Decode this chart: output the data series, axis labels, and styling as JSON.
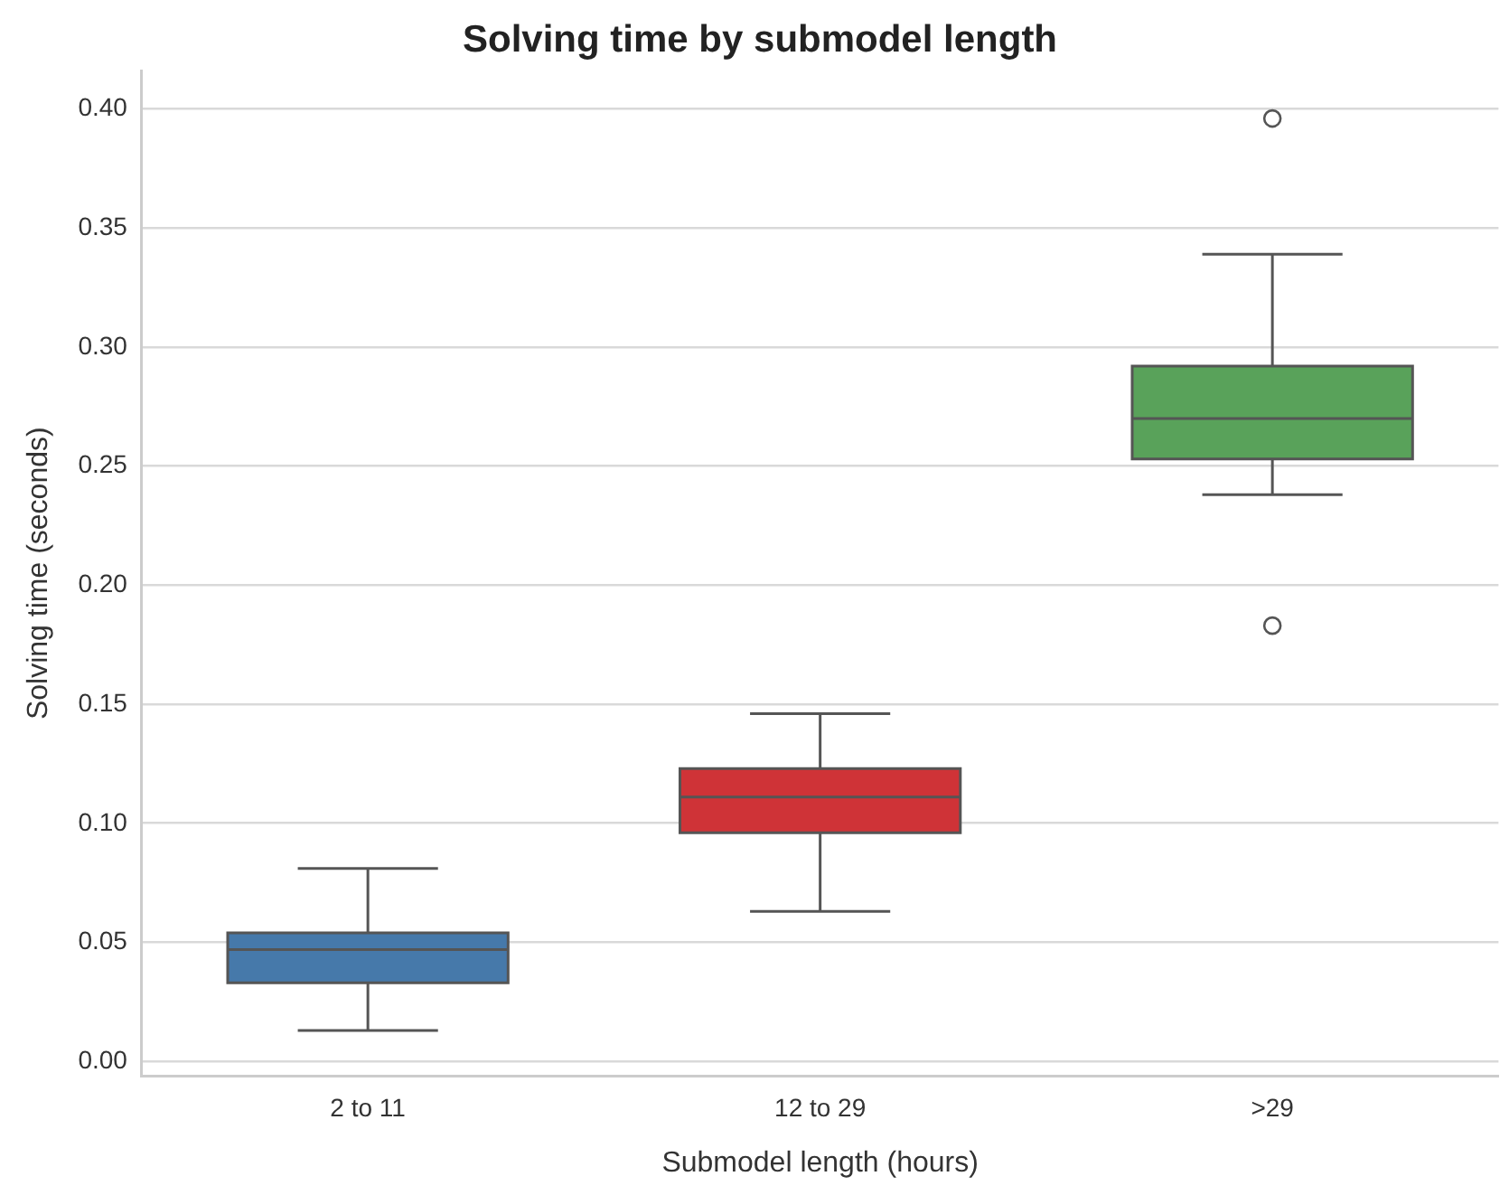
{
  "chart_data": {
    "type": "box",
    "title": "Solving time by submodel length",
    "xlabel": "Submodel length (hours)",
    "ylabel": "Solving time (seconds)",
    "categories": [
      "2 to 11",
      "12 to 29",
      ">29"
    ],
    "colors": [
      "#4679aa",
      "#cf3337",
      "#59a25a"
    ],
    "boxes": [
      {
        "low": 0.013,
        "q1": 0.033,
        "median": 0.047,
        "q3": 0.054,
        "high": 0.081
      },
      {
        "low": 0.063,
        "q1": 0.096,
        "median": 0.111,
        "q3": 0.123,
        "high": 0.146
      },
      {
        "low": 0.238,
        "q1": 0.253,
        "median": 0.27,
        "q3": 0.292,
        "high": 0.339,
        "outliers": [
          0.396,
          0.183
        ]
      }
    ],
    "ylim": [
      -0.006,
      0.416
    ],
    "yticks": [
      {
        "value": 0,
        "label": "0.00"
      },
      {
        "value": 0.05,
        "label": "0.05"
      },
      {
        "value": 0.1,
        "label": "0.10"
      },
      {
        "value": 0.15,
        "label": "0.15"
      },
      {
        "value": 0.2,
        "label": "0.20"
      },
      {
        "value": 0.25,
        "label": "0.25"
      },
      {
        "value": 0.3,
        "label": "0.30"
      },
      {
        "value": 0.35,
        "label": "0.35"
      },
      {
        "value": 0.4,
        "label": "0.40"
      }
    ],
    "grid": "y",
    "legend": false
  }
}
